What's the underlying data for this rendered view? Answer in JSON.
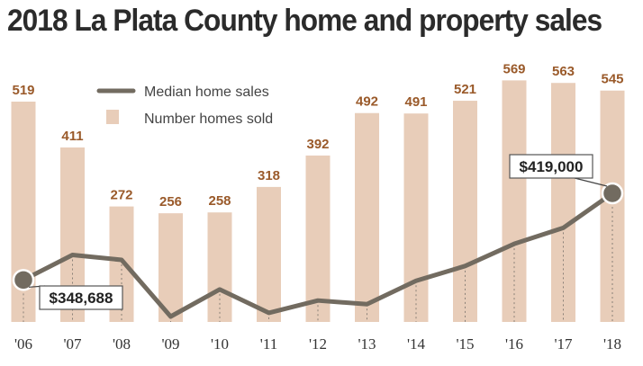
{
  "title": "2018 La Plata County home and property sales",
  "legend": {
    "line_label": "Median home sales",
    "bar_label": "Number homes sold"
  },
  "colors": {
    "bar": "#e8cdb9",
    "line": "#726b60",
    "bar_label": "#9a5a2a",
    "text": "#2b2b2b"
  },
  "chart_data": {
    "type": "bar",
    "title": "2018 La Plata County home and property sales",
    "categories": [
      "'06",
      "'07",
      "'08",
      "'09",
      "'10",
      "'11",
      "'12",
      "'13",
      "'14",
      "'15",
      "'16",
      "'17",
      "'18"
    ],
    "series": [
      {
        "name": "Number homes sold",
        "type": "bar",
        "values": [
          519,
          411,
          272,
          256,
          258,
          318,
          392,
          492,
          491,
          521,
          569,
          563,
          545
        ],
        "labels": [
          "519",
          "411",
          "272",
          "256",
          "258",
          "318",
          "392",
          "492",
          "491",
          "521",
          "569",
          "563",
          "545"
        ]
      },
      {
        "name": "Median home sales",
        "type": "line",
        "values": [
          348688,
          369000,
          365000,
          319000,
          341000,
          322000,
          332000,
          329000,
          348000,
          360000,
          378000,
          391000,
          419000
        ]
      }
    ],
    "annotations": [
      {
        "category": "'06",
        "text": "$348,688"
      },
      {
        "category": "'18",
        "text": "$419,000"
      }
    ],
    "grid": false,
    "legend_position": "top-left"
  }
}
